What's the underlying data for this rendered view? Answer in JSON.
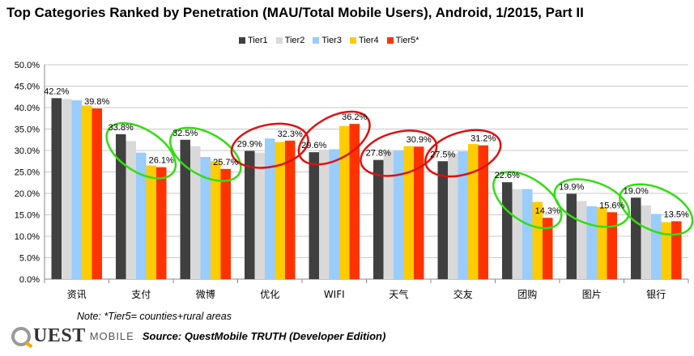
{
  "chart_data": {
    "type": "bar",
    "title": "Top Categories Ranked by Penetration (MAU/Total Mobile Users), Android, 1/2015, Part II",
    "categories": [
      "资讯",
      "支付",
      "微博",
      "优化",
      "WIFI",
      "天气",
      "交友",
      "团购",
      "图片",
      "银行"
    ],
    "series": [
      {
        "name": "Tier1",
        "color": "#404040",
        "values": [
          42.2,
          33.8,
          32.5,
          29.9,
          29.6,
          27.8,
          27.5,
          22.6,
          19.9,
          19.0
        ]
      },
      {
        "name": "Tier2",
        "color": "#d9d9d9",
        "values": [
          42.0,
          32.2,
          31.0,
          29.5,
          30.2,
          29.8,
          29.3,
          21.0,
          18.2,
          17.2
        ]
      },
      {
        "name": "Tier3",
        "color": "#99ccff",
        "values": [
          41.7,
          29.5,
          28.5,
          32.8,
          30.3,
          29.9,
          29.8,
          21.0,
          17.0,
          15.2
        ]
      },
      {
        "name": "Tier4",
        "color": "#ffcc00",
        "values": [
          40.5,
          26.5,
          27.5,
          32.0,
          35.7,
          31.0,
          31.5,
          18.0,
          16.8,
          13.3
        ]
      },
      {
        "name": "Tier5*",
        "color": "#ff3300",
        "values": [
          39.8,
          26.1,
          25.7,
          32.3,
          36.2,
          30.9,
          31.2,
          14.3,
          15.6,
          13.5
        ]
      }
    ],
    "data_labels": [
      {
        "category": "资讯",
        "text": "42.2%"
      },
      {
        "category": "资讯",
        "text": "39.8%"
      },
      {
        "category": "支付",
        "text": "33.8%"
      },
      {
        "category": "支付",
        "text": "26.1%"
      },
      {
        "category": "微博",
        "text": "32.5%"
      },
      {
        "category": "微博",
        "text": "25.7%"
      },
      {
        "category": "优化",
        "text": "29.9%"
      },
      {
        "category": "优化",
        "text": "32.3%"
      },
      {
        "category": "WIFI",
        "text": "29.6%"
      },
      {
        "category": "WIFI",
        "text": "36.2%"
      },
      {
        "category": "天气",
        "text": "27.8%"
      },
      {
        "category": "天气",
        "text": "30.9%"
      },
      {
        "category": "交友",
        "text": "27.5%"
      },
      {
        "category": "交友",
        "text": "31.2%"
      },
      {
        "category": "团购",
        "text": "22.6%"
      },
      {
        "category": "团购",
        "text": "14.3%"
      },
      {
        "category": "图片",
        "text": "19.9%"
      },
      {
        "category": "图片",
        "text": "15.6%"
      },
      {
        "category": "银行",
        "text": "19.0%"
      },
      {
        "category": "银行",
        "text": "13.5%"
      }
    ],
    "y_ticks": [
      "0.0%",
      "5.0%",
      "10.0%",
      "15.0%",
      "20.0%",
      "25.0%",
      "30.0%",
      "35.0%",
      "40.0%",
      "45.0%",
      "50.0%"
    ],
    "ylim": [
      0,
      50
    ],
    "grid": true,
    "legend_position": "top",
    "highlights": [
      {
        "category": "支付",
        "color": "green"
      },
      {
        "category": "微博",
        "color": "green"
      },
      {
        "category": "优化",
        "color": "red"
      },
      {
        "category": "WIFI",
        "color": "red"
      },
      {
        "category": "天气",
        "color": "red"
      },
      {
        "category": "交友",
        "color": "red"
      },
      {
        "category": "团购",
        "color": "green"
      },
      {
        "category": "图片",
        "color": "green"
      },
      {
        "category": "银行",
        "color": "green"
      }
    ]
  },
  "highlight_colors": {
    "green": "#33dd11",
    "red": "#dd1111"
  },
  "note": "Note: *Tier5= counties+rural areas",
  "logo": {
    "main": "UEST",
    "sub": "MOBILE",
    "icon": "q-logo-icon"
  },
  "source": "Source: QuestMobile TRUTH (Developer Edition)"
}
